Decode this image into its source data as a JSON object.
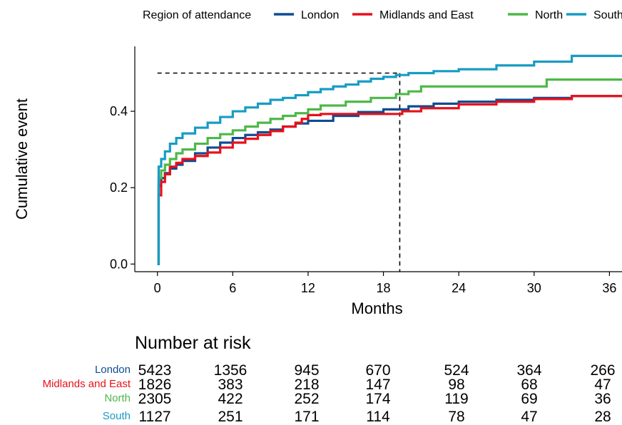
{
  "chart_data": {
    "type": "line",
    "step": true,
    "xlabel": "Months",
    "ylabel": "Cumulative event",
    "xlim": [
      -1.8,
      37
    ],
    "ylim": [
      -0.02,
      0.57
    ],
    "x_ticks": [
      0,
      6,
      12,
      18,
      24,
      30,
      36
    ],
    "y_ticks": [
      0.0,
      0.2,
      0.4
    ],
    "y_tick_labels": [
      "0.0",
      "0.2",
      "0.4"
    ],
    "grid": false,
    "legend": {
      "title": "Region of attendance",
      "position": "top"
    },
    "series": [
      {
        "name": "London",
        "color": "#0E4C92",
        "x": [
          0,
          0.1,
          0.3,
          0.6,
          1,
          1.5,
          2,
          3,
          4,
          5,
          6,
          7,
          8,
          9,
          10,
          11,
          12,
          14,
          16,
          18,
          20,
          22,
          24,
          27,
          30,
          33,
          37
        ],
        "y": [
          0,
          0.205,
          0.225,
          0.238,
          0.25,
          0.26,
          0.27,
          0.29,
          0.305,
          0.318,
          0.33,
          0.338,
          0.345,
          0.352,
          0.36,
          0.368,
          0.375,
          0.388,
          0.398,
          0.405,
          0.413,
          0.42,
          0.425,
          0.43,
          0.435,
          0.44,
          0.443
        ]
      },
      {
        "name": "Midlands and East",
        "color": "#E8101A",
        "x": [
          0,
          0.1,
          0.3,
          0.6,
          1,
          1.5,
          2,
          3,
          4,
          5,
          6,
          7,
          8,
          9,
          10,
          11,
          11.5,
          12,
          13,
          18,
          19.5,
          21,
          24,
          27,
          30,
          33,
          37
        ],
        "y": [
          0,
          0.18,
          0.215,
          0.235,
          0.255,
          0.265,
          0.275,
          0.283,
          0.292,
          0.305,
          0.318,
          0.328,
          0.338,
          0.348,
          0.36,
          0.37,
          0.38,
          0.39,
          0.393,
          0.393,
          0.4,
          0.408,
          0.418,
          0.425,
          0.432,
          0.44,
          0.443
        ]
      },
      {
        "name": "North",
        "color": "#4DB848",
        "x": [
          0,
          0.1,
          0.3,
          0.6,
          1,
          1.5,
          2,
          3,
          4,
          5,
          6,
          7,
          8,
          9,
          10,
          11,
          12,
          13,
          15,
          17,
          19,
          20,
          21,
          23,
          27,
          30,
          31,
          33,
          37
        ],
        "y": [
          0,
          0.225,
          0.245,
          0.26,
          0.275,
          0.29,
          0.3,
          0.315,
          0.33,
          0.34,
          0.35,
          0.36,
          0.37,
          0.38,
          0.388,
          0.395,
          0.405,
          0.415,
          0.425,
          0.435,
          0.445,
          0.452,
          0.465,
          0.465,
          0.465,
          0.465,
          0.483,
          0.483,
          0.483
        ]
      },
      {
        "name": "South",
        "color": "#169CC3",
        "x": [
          0,
          0.1,
          0.3,
          0.6,
          1,
          1.5,
          2,
          3,
          4,
          5,
          6,
          7,
          8,
          9,
          10,
          11,
          12,
          13,
          14,
          15,
          16,
          17,
          18,
          19,
          20,
          22,
          24,
          27,
          30,
          33,
          37
        ],
        "y": [
          0,
          0.255,
          0.275,
          0.295,
          0.315,
          0.33,
          0.342,
          0.357,
          0.37,
          0.385,
          0.4,
          0.41,
          0.42,
          0.43,
          0.435,
          0.442,
          0.45,
          0.458,
          0.465,
          0.47,
          0.478,
          0.485,
          0.49,
          0.495,
          0.5,
          0.505,
          0.51,
          0.52,
          0.53,
          0.545,
          0.545
        ]
      }
    ],
    "median_guide": {
      "x": 19.3,
      "y": 0.5
    },
    "risk_table": {
      "title": "Number at risk",
      "times": [
        0,
        6,
        12,
        18,
        24,
        30,
        36
      ],
      "rows": [
        {
          "name": "London",
          "color": "#0E4C92",
          "values": [
            "5423",
            "1356",
            "945",
            "670",
            "524",
            "364",
            "266"
          ]
        },
        {
          "name": "Midlands and East",
          "color": "#E8101A",
          "values": [
            "1826",
            "383",
            "218",
            "147",
            "98",
            "68",
            "47"
          ]
        },
        {
          "name": "North",
          "color": "#4DB848",
          "values": [
            "2305",
            "422",
            "252",
            "174",
            "119",
            "69",
            "36"
          ]
        },
        {
          "name": "South",
          "color": "#169CC3",
          "values": [
            "1127",
            "251",
            "171",
            "114",
            "78",
            "47",
            "28"
          ]
        }
      ]
    }
  }
}
